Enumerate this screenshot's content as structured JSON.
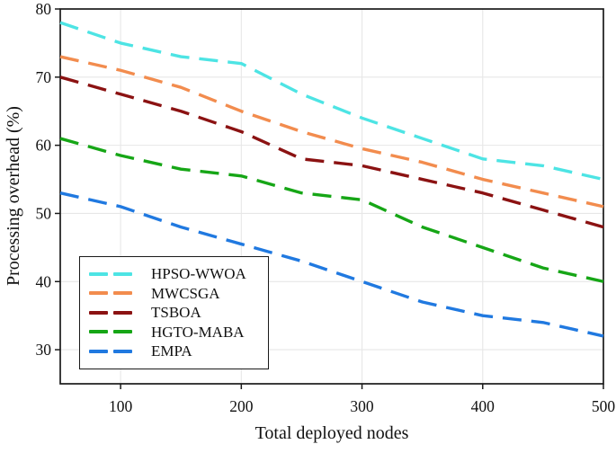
{
  "chart_data": {
    "type": "line",
    "xlabel": "Total deployed nodes",
    "ylabel": "Processing overhead (%)",
    "xlim": [
      50,
      500
    ],
    "ylim": [
      25,
      80
    ],
    "xticks": [
      100,
      200,
      300,
      400,
      500
    ],
    "yticks": [
      30,
      40,
      50,
      60,
      70,
      80
    ],
    "grid": true,
    "line_style": "dashed",
    "legend_position": "lower-left",
    "x": [
      50,
      100,
      150,
      200,
      250,
      300,
      350,
      400,
      450,
      500
    ],
    "series": [
      {
        "name": "HPSO-WWOA",
        "color": "#4DE4E4",
        "values": [
          78,
          75,
          73,
          72,
          67.5,
          64,
          61,
          58,
          57,
          55
        ]
      },
      {
        "name": "MWCSGA",
        "color": "#F28C4E",
        "values": [
          73,
          71,
          68.5,
          65,
          62,
          59.5,
          57.5,
          55,
          53,
          51
        ]
      },
      {
        "name": "TSBOA",
        "color": "#8B1212",
        "values": [
          70,
          67.5,
          65,
          62,
          58,
          57,
          55,
          53,
          50.5,
          48
        ]
      },
      {
        "name": "HGTO-MABA",
        "color": "#16A616",
        "values": [
          61,
          58.5,
          56.5,
          55.5,
          53,
          52,
          48,
          45,
          42,
          40
        ]
      },
      {
        "name": "EMPA",
        "color": "#2079E0",
        "values": [
          53,
          51,
          48,
          45.5,
          43,
          40,
          37,
          35,
          34,
          32
        ]
      }
    ],
    "style_colors": {
      "grid": "#e7e7e7",
      "axis": "#1a1a1a",
      "tick_label": "#111111"
    }
  }
}
